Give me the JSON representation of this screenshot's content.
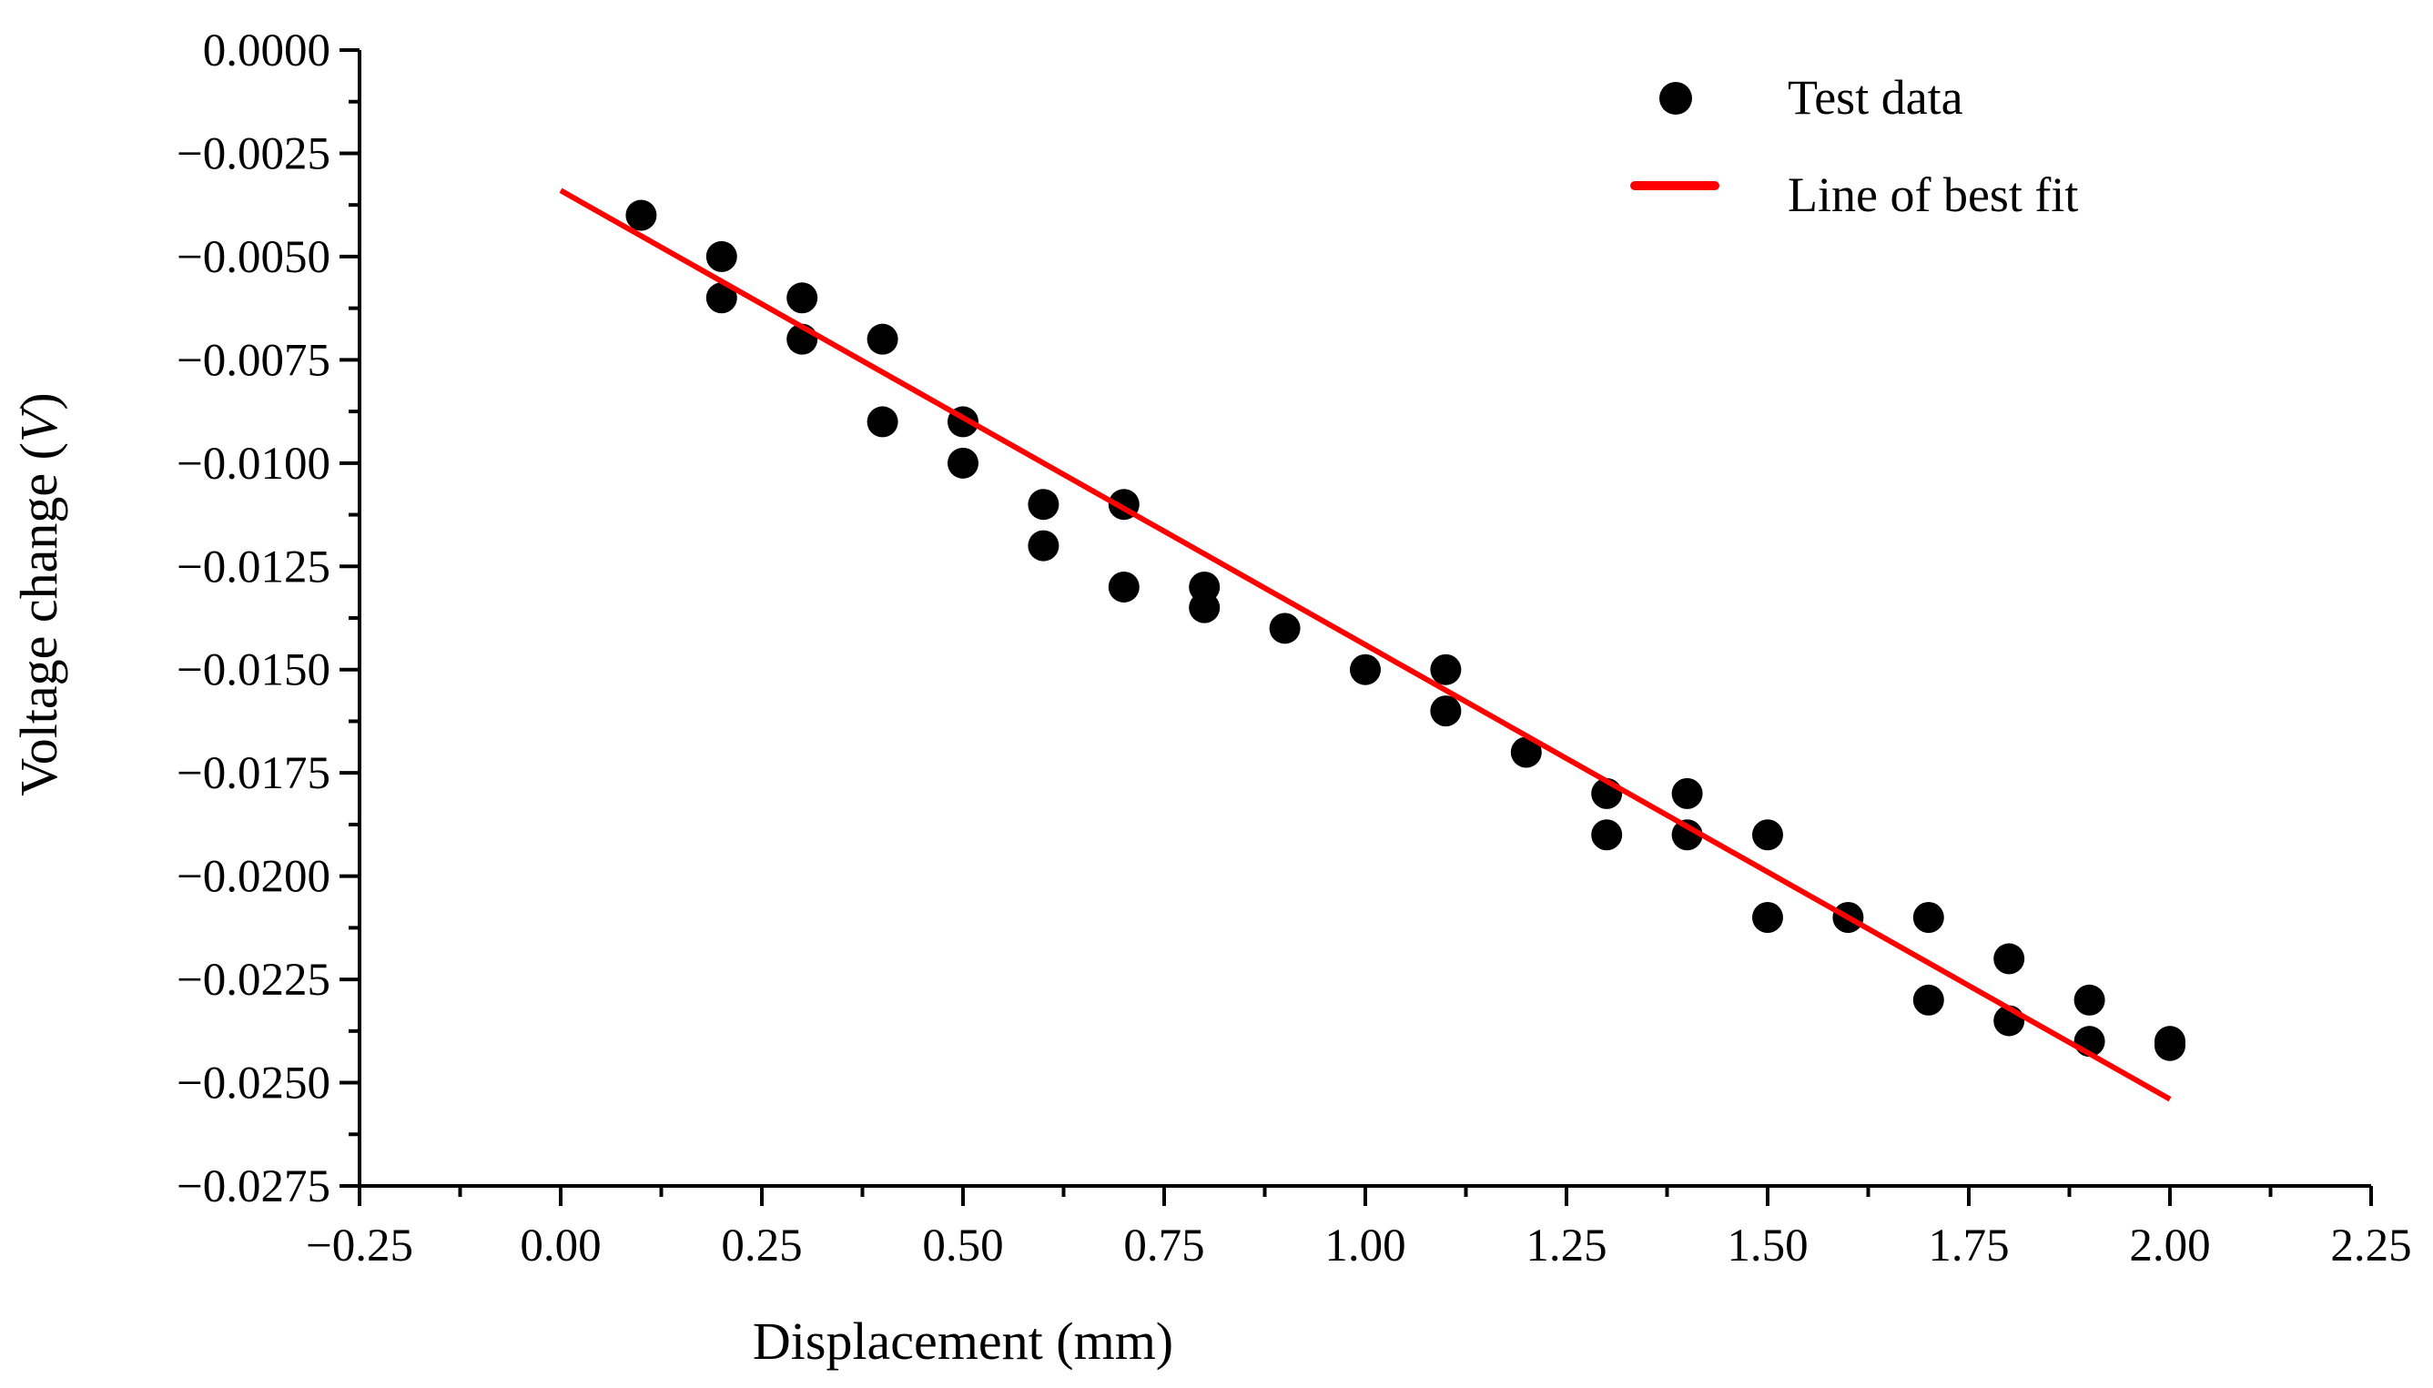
{
  "chart_data": {
    "type": "scatter",
    "title": "",
    "xlabel": "Displacement (mm)",
    "ylabel_prefix": "Voltage change (",
    "ylabel_var": "V",
    "ylabel_suffix": ")",
    "xlim": [
      -0.25,
      2.25
    ],
    "ylim": [
      -0.0275,
      0.0
    ],
    "x_ticks": [
      -0.25,
      0.0,
      0.25,
      0.5,
      0.75,
      1.0,
      1.25,
      1.5,
      1.75,
      2.0,
      2.25
    ],
    "x_tick_labels": [
      "−0.25",
      "0.00",
      "0.25",
      "0.50",
      "0.75",
      "1.00",
      "1.25",
      "1.50",
      "1.75",
      "2.00",
      "2.25"
    ],
    "y_ticks": [
      0.0,
      -0.0025,
      -0.005,
      -0.0075,
      -0.01,
      -0.0125,
      -0.015,
      -0.0175,
      -0.02,
      -0.0225,
      -0.025,
      -0.0275
    ],
    "y_tick_labels": [
      "0.0000",
      "−0.0025",
      "−0.0050",
      "−0.0075",
      "−0.0100",
      "−0.0125",
      "−0.0150",
      "−0.0175",
      "−0.0200",
      "−0.0225",
      "−0.0250",
      "−0.0275"
    ],
    "grid": false,
    "legend_position": "top-right",
    "series": [
      {
        "name": "Test data",
        "kind": "scatter",
        "color": "#000000",
        "points": [
          [
            0.1,
            -0.004
          ],
          [
            0.2,
            -0.005
          ],
          [
            0.2,
            -0.006
          ],
          [
            0.3,
            -0.006
          ],
          [
            0.3,
            -0.007
          ],
          [
            0.4,
            -0.007
          ],
          [
            0.4,
            -0.009
          ],
          [
            0.5,
            -0.009
          ],
          [
            0.5,
            -0.01
          ],
          [
            0.6,
            -0.011
          ],
          [
            0.6,
            -0.012
          ],
          [
            0.7,
            -0.011
          ],
          [
            0.7,
            -0.013
          ],
          [
            0.8,
            -0.013
          ],
          [
            0.8,
            -0.0135
          ],
          [
            0.9,
            -0.014
          ],
          [
            1.0,
            -0.015
          ],
          [
            1.1,
            -0.015
          ],
          [
            1.1,
            -0.016
          ],
          [
            1.2,
            -0.017
          ],
          [
            1.3,
            -0.018
          ],
          [
            1.3,
            -0.019
          ],
          [
            1.4,
            -0.018
          ],
          [
            1.4,
            -0.019
          ],
          [
            1.5,
            -0.019
          ],
          [
            1.5,
            -0.021
          ],
          [
            1.6,
            -0.021
          ],
          [
            1.7,
            -0.021
          ],
          [
            1.7,
            -0.023
          ],
          [
            1.8,
            -0.022
          ],
          [
            1.8,
            -0.0235
          ],
          [
            1.9,
            -0.023
          ],
          [
            1.9,
            -0.024
          ],
          [
            2.0,
            -0.024
          ],
          [
            2.0,
            -0.0241
          ]
        ]
      },
      {
        "name": "Line of best fit",
        "kind": "line",
        "color": "#ff0000",
        "points": [
          [
            0.0,
            -0.0034
          ],
          [
            2.0,
            -0.0254
          ]
        ]
      }
    ]
  }
}
